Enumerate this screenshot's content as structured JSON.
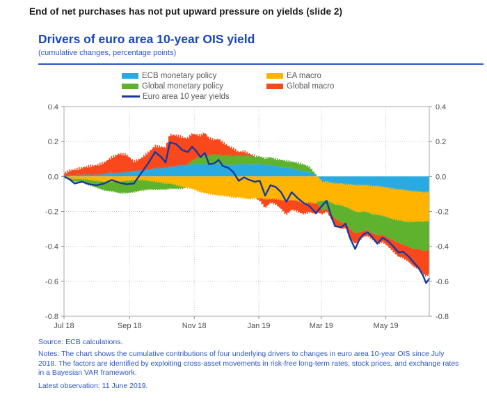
{
  "page": {
    "heading": "End of net purchases has not put upward pressure on yields (slide 2)"
  },
  "chart": {
    "title": "Drivers of euro area 10-year OIS yield",
    "subtitle": "(cumulative changes, percentage points)",
    "source": "Source: ECB calculations.",
    "notes": "Notes: The chart shows the cumulative contributions of four underlying drivers to changes in euro area 10-year OIS since July 2018. The factors are identified by exploiting cross-asset movements in risk-free long-term rates, stock prices, and exchange rates in a Bayesian VAR framework.",
    "latest": "Latest observation: 11 June 2019."
  },
  "colors": {
    "title_blue": "#1746bd",
    "text_blue": "#2a55c2",
    "heading_black": "#1a1a1a",
    "legend_text_gray": "#58595b",
    "axis_text_gray": "#4d4d4d"
  },
  "chart_data": {
    "type": "area",
    "stacked": true,
    "title": "Drivers of euro area 10-year OIS yield",
    "subtitle": "(cumulative changes, percentage points)",
    "ylim": [
      -0.8,
      0.4
    ],
    "yticks": [
      0.4,
      0.2,
      0,
      -0.2,
      -0.4,
      -0.6,
      -0.8
    ],
    "grid": "dotted",
    "legend_position": "top",
    "xticks": [
      {
        "date": "2018-07-01",
        "label": "Jul 18"
      },
      {
        "date": "2018-09-01",
        "label": "Sep 18"
      },
      {
        "date": "2018-11-01",
        "label": "Nov 18"
      },
      {
        "date": "2019-01-01",
        "label": "Jan 19"
      },
      {
        "date": "2019-03-01",
        "label": "Mar 19"
      },
      {
        "date": "2019-05-01",
        "label": "May 19"
      }
    ],
    "series": [
      {
        "slug": "ecb-monetary-policy",
        "name": "ECB monetary policy",
        "color": "#29abe2"
      },
      {
        "slug": "ea-macro",
        "name": "EA macro",
        "color": "#ffb400"
      },
      {
        "slug": "global-monetary-policy",
        "name": "Global monetary policy",
        "color": "#5eb22d"
      },
      {
        "slug": "global-macro",
        "name": "Global macro",
        "color": "#f8481c"
      }
    ],
    "line": {
      "slug": "euro-area-10-year-yields",
      "name": "Euro area 10 year yields",
      "color": "#17399e"
    },
    "columns": [
      "date",
      "ecb_monetary_policy",
      "ea_macro",
      "global_monetary_policy",
      "global_macro",
      "euro_area_10y_yield"
    ],
    "points": [
      [
        "2018-07-01",
        0.0,
        0.0,
        -0.005,
        0.015,
        0.0
      ],
      [
        "2018-07-06",
        0.005,
        -0.01,
        -0.01,
        0.03,
        -0.015
      ],
      [
        "2018-07-11",
        0.005,
        -0.015,
        -0.015,
        0.035,
        -0.04
      ],
      [
        "2018-07-18",
        0.01,
        -0.015,
        -0.02,
        0.04,
        -0.03
      ],
      [
        "2018-07-25",
        0.01,
        -0.02,
        -0.03,
        0.05,
        -0.045
      ],
      [
        "2018-08-01",
        0.01,
        -0.025,
        -0.04,
        0.055,
        -0.05
      ],
      [
        "2018-08-08",
        0.015,
        -0.03,
        -0.05,
        0.065,
        -0.04
      ],
      [
        "2018-08-15",
        0.02,
        -0.03,
        -0.055,
        0.09,
        -0.02
      ],
      [
        "2018-08-22",
        0.02,
        -0.03,
        -0.065,
        0.11,
        -0.035
      ],
      [
        "2018-08-29",
        0.025,
        -0.025,
        -0.07,
        0.1,
        -0.045
      ],
      [
        "2018-09-05",
        0.03,
        -0.02,
        -0.07,
        0.055,
        -0.04
      ],
      [
        "2018-09-12",
        0.035,
        -0.02,
        -0.06,
        0.07,
        0.02
      ],
      [
        "2018-09-19",
        0.04,
        -0.025,
        -0.05,
        0.1,
        0.08
      ],
      [
        "2018-09-25",
        0.045,
        -0.03,
        -0.045,
        0.13,
        0.14
      ],
      [
        "2018-10-01",
        0.05,
        -0.035,
        -0.04,
        0.12,
        0.11
      ],
      [
        "2018-10-05",
        0.05,
        -0.04,
        -0.035,
        0.115,
        0.08
      ],
      [
        "2018-10-09",
        0.055,
        -0.04,
        -0.03,
        0.185,
        0.195
      ],
      [
        "2018-10-15",
        0.06,
        -0.05,
        -0.02,
        0.175,
        0.185
      ],
      [
        "2018-10-21",
        0.065,
        -0.06,
        -0.01,
        0.16,
        0.15
      ],
      [
        "2018-10-26",
        0.065,
        -0.065,
        0.005,
        0.15,
        0.14
      ],
      [
        "2018-10-30",
        0.07,
        -0.07,
        0.02,
        0.155,
        0.17
      ],
      [
        "2018-11-03",
        0.07,
        -0.08,
        0.035,
        0.135,
        0.145
      ],
      [
        "2018-11-07",
        0.07,
        -0.09,
        0.045,
        0.12,
        0.11
      ],
      [
        "2018-11-11",
        0.07,
        -0.095,
        0.05,
        0.13,
        0.135
      ],
      [
        "2018-11-15",
        0.07,
        -0.1,
        0.05,
        0.1,
        0.07
      ],
      [
        "2018-11-20",
        0.07,
        -0.105,
        0.055,
        0.085,
        0.075
      ],
      [
        "2018-11-24",
        0.07,
        -0.11,
        0.055,
        0.09,
        0.095
      ],
      [
        "2018-11-28",
        0.07,
        -0.11,
        0.05,
        0.075,
        0.06
      ],
      [
        "2018-12-03",
        0.065,
        -0.115,
        0.055,
        0.055,
        0.05
      ],
      [
        "2018-12-08",
        0.065,
        -0.12,
        0.055,
        0.04,
        0.025
      ],
      [
        "2018-12-13",
        0.07,
        -0.12,
        0.05,
        0.02,
        -0.025
      ],
      [
        "2018-12-18",
        0.07,
        -0.125,
        0.05,
        0.025,
        -0.005
      ],
      [
        "2018-12-23",
        0.07,
        -0.13,
        0.05,
        0.01,
        -0.02
      ],
      [
        "2018-12-28",
        0.07,
        -0.125,
        0.045,
        0.005,
        -0.03
      ],
      [
        "2019-01-02",
        0.07,
        -0.125,
        0.045,
        -0.015,
        -0.025
      ],
      [
        "2019-01-07",
        0.065,
        -0.13,
        0.04,
        -0.05,
        -0.11
      ],
      [
        "2019-01-12",
        0.065,
        -0.13,
        0.045,
        -0.02,
        -0.05
      ],
      [
        "2019-01-17",
        0.06,
        -0.13,
        0.04,
        -0.03,
        -0.06
      ],
      [
        "2019-01-22",
        0.055,
        -0.135,
        0.04,
        -0.05,
        -0.09
      ],
      [
        "2019-01-27",
        0.05,
        -0.14,
        0.04,
        -0.08,
        -0.145
      ],
      [
        "2019-02-01",
        0.045,
        -0.135,
        0.04,
        -0.055,
        -0.09
      ],
      [
        "2019-02-06",
        0.04,
        -0.14,
        0.04,
        -0.06,
        -0.12
      ],
      [
        "2019-02-12",
        0.03,
        -0.155,
        0.04,
        -0.06,
        -0.15
      ],
      [
        "2019-02-18",
        0.025,
        -0.15,
        0.03,
        -0.055,
        -0.17
      ],
      [
        "2019-02-24",
        0.01,
        -0.155,
        0.0,
        -0.06,
        -0.21
      ],
      [
        "2019-03-02",
        -0.03,
        -0.11,
        -0.055,
        -0.02,
        -0.165
      ],
      [
        "2019-03-06",
        -0.03,
        -0.105,
        -0.05,
        -0.015,
        -0.14
      ],
      [
        "2019-03-10",
        -0.035,
        -0.115,
        -0.065,
        -0.025,
        -0.22
      ],
      [
        "2019-03-14",
        -0.04,
        -0.12,
        -0.08,
        -0.04,
        -0.285
      ],
      [
        "2019-03-20",
        -0.04,
        -0.125,
        -0.1,
        -0.035,
        -0.29
      ],
      [
        "2019-03-24",
        -0.045,
        -0.13,
        -0.09,
        -0.03,
        -0.27
      ],
      [
        "2019-03-28",
        -0.045,
        -0.14,
        -0.115,
        -0.055,
        -0.35
      ],
      [
        "2019-04-02",
        -0.05,
        -0.15,
        -0.125,
        -0.06,
        -0.415
      ],
      [
        "2019-04-06",
        -0.05,
        -0.155,
        -0.115,
        -0.045,
        -0.36
      ],
      [
        "2019-04-10",
        -0.05,
        -0.15,
        -0.11,
        -0.035,
        -0.33
      ],
      [
        "2019-04-14",
        -0.05,
        -0.155,
        -0.105,
        -0.03,
        -0.32
      ],
      [
        "2019-04-18",
        -0.055,
        -0.16,
        -0.11,
        -0.035,
        -0.345
      ],
      [
        "2019-04-23",
        -0.055,
        -0.165,
        -0.115,
        -0.05,
        -0.385
      ],
      [
        "2019-04-28",
        -0.06,
        -0.165,
        -0.11,
        -0.04,
        -0.35
      ],
      [
        "2019-05-03",
        -0.065,
        -0.17,
        -0.115,
        -0.05,
        -0.37
      ],
      [
        "2019-05-08",
        -0.07,
        -0.175,
        -0.12,
        -0.065,
        -0.4
      ],
      [
        "2019-05-13",
        -0.075,
        -0.175,
        -0.13,
        -0.08,
        -0.435
      ],
      [
        "2019-05-17",
        -0.075,
        -0.18,
        -0.135,
        -0.075,
        -0.43
      ],
      [
        "2019-05-22",
        -0.08,
        -0.18,
        -0.14,
        -0.085,
        -0.455
      ],
      [
        "2019-05-27",
        -0.085,
        -0.175,
        -0.155,
        -0.1,
        -0.49
      ],
      [
        "2019-06-01",
        -0.085,
        -0.17,
        -0.16,
        -0.115,
        -0.525
      ],
      [
        "2019-06-05",
        -0.09,
        -0.17,
        -0.165,
        -0.13,
        -0.565
      ],
      [
        "2019-06-08",
        -0.09,
        -0.165,
        -0.17,
        -0.145,
        -0.61
      ],
      [
        "2019-06-11",
        -0.085,
        -0.17,
        -0.165,
        -0.14,
        -0.585
      ]
    ]
  }
}
